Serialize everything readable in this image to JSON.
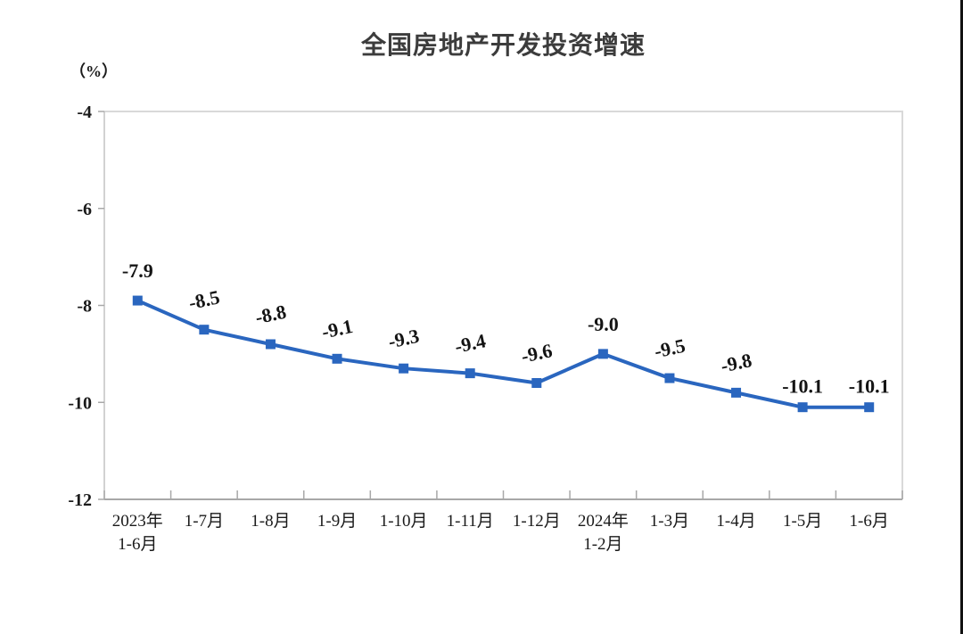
{
  "chart_data": {
    "type": "line",
    "title": "全国房地产开发投资增速",
    "ylabel": "（%）",
    "xlabel": "",
    "categories": [
      "2023年\n1-6月",
      "1-7月",
      "1-8月",
      "1-9月",
      "1-10月",
      "1-11月",
      "1-12月",
      "2024年\n1-2月",
      "1-3月",
      "1-4月",
      "1-5月",
      "1-6月"
    ],
    "values": [
      -7.9,
      -8.5,
      -8.8,
      -9.1,
      -9.3,
      -9.4,
      -9.6,
      -9.0,
      -9.5,
      -9.8,
      -10.1,
      -10.1
    ],
    "data_labels": [
      "-7.9",
      "-8.5",
      "-8.8",
      "-9.1",
      "-9.3",
      "-9.4",
      "-9.6",
      "-9.0",
      "-9.5",
      "-9.8",
      "-10.1",
      "-10.1"
    ],
    "ylim": [
      -12,
      -4
    ],
    "yticks": [
      -4,
      -6,
      -8,
      -10,
      -12
    ],
    "ytick_labels": [
      "-4",
      "-6",
      "-8",
      "-10",
      "-12"
    ],
    "grid": false,
    "legend": "none",
    "marker": "square",
    "colors": {
      "line": "#2a66bf",
      "marker": "#2a66bf",
      "data_label": "#141414",
      "tick_label": "#1a1a1a",
      "title": "#3c3c3c",
      "axis": "#a8a8a8",
      "y_axis_line": "#c4c4c4",
      "plot_border": "#d9d9d9"
    }
  }
}
